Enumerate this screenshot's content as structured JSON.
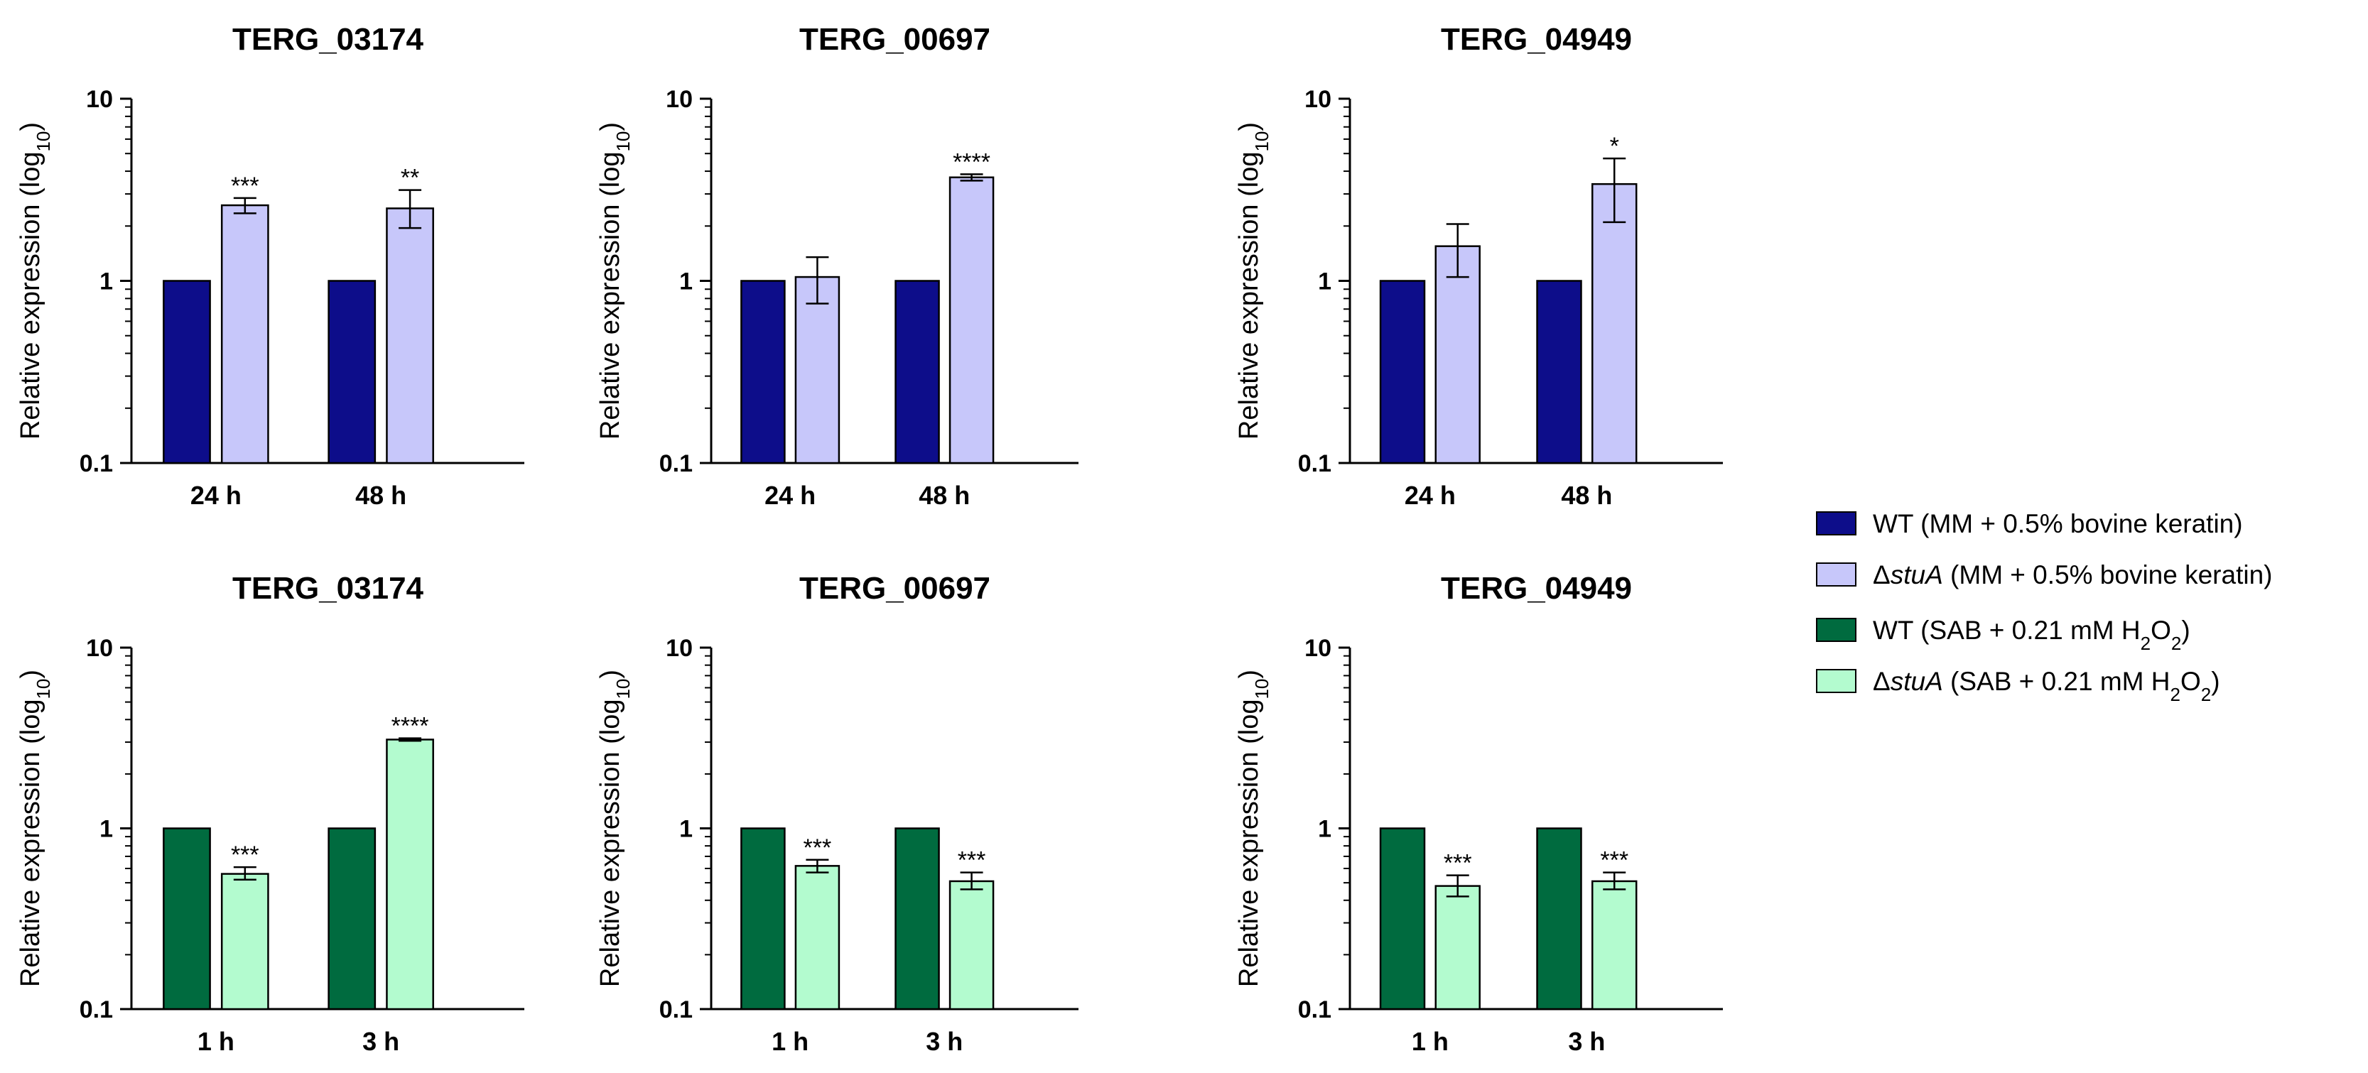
{
  "chart_data": [
    {
      "type": "bar",
      "title": "TERG_03174",
      "ylabel": "Relative expression (log",
      "ylabel_sub": "10",
      "ylabel_end": ")",
      "yscale": "log",
      "ylim": [
        0.1,
        10
      ],
      "yticks": [
        "10",
        "1",
        "0.1"
      ],
      "yticks_values": [
        10,
        1,
        0.1
      ],
      "categories": [
        "24 h",
        "48 h"
      ],
      "series": [
        {
          "name": "WT (MM + 0.5% bovine keratin)",
          "values": [
            1,
            1
          ],
          "color": "#0d0d8a"
        },
        {
          "name": "ΔstuA (MM + 0.5% bovine keratin)",
          "values": [
            2.6,
            2.5
          ],
          "err_low": [
            2.35,
            1.95
          ],
          "err_high": [
            2.85,
            3.15
          ],
          "sig": [
            "***",
            "**"
          ],
          "color": "#c7c7fa"
        }
      ]
    },
    {
      "type": "bar",
      "title": "TERG_00697",
      "ylabel": "Relative expression (log",
      "ylabel_sub": "10",
      "ylabel_end": ")",
      "yscale": "log",
      "ylim": [
        0.1,
        10
      ],
      "yticks": [
        "10",
        "1",
        "0.1"
      ],
      "yticks_values": [
        10,
        1,
        0.1
      ],
      "categories": [
        "24 h",
        "48 h"
      ],
      "series": [
        {
          "name": "WT (MM + 0.5% bovine keratin)",
          "values": [
            1,
            1
          ],
          "color": "#0d0d8a"
        },
        {
          "name": "ΔstuA (MM + 0.5% bovine keratin)",
          "values": [
            1.05,
            3.7
          ],
          "err_low": [
            0.75,
            3.55
          ],
          "err_high": [
            1.35,
            3.85
          ],
          "sig": [
            "",
            "****"
          ],
          "color": "#c7c7fa"
        }
      ]
    },
    {
      "type": "bar",
      "title": "TERG_04949",
      "ylabel": "Relative expression (log",
      "ylabel_sub": "10",
      "ylabel_end": ")",
      "yscale": "log",
      "ylim": [
        0.1,
        10
      ],
      "yticks": [
        "10",
        "1",
        "0.1"
      ],
      "yticks_values": [
        10,
        1,
        0.1
      ],
      "categories": [
        "24 h",
        "48 h"
      ],
      "series": [
        {
          "name": "WT (MM + 0.5% bovine keratin)",
          "values": [
            1,
            1
          ],
          "color": "#0d0d8a"
        },
        {
          "name": "ΔstuA (MM + 0.5% bovine keratin)",
          "values": [
            1.55,
            3.4
          ],
          "err_low": [
            1.05,
            2.1
          ],
          "err_high": [
            2.05,
            4.7
          ],
          "sig": [
            "",
            "*"
          ],
          "color": "#c7c7fa"
        }
      ]
    },
    {
      "type": "bar",
      "title": "TERG_03174",
      "ylabel": "Relative expression (log",
      "ylabel_sub": "10",
      "ylabel_end": ")",
      "yscale": "log",
      "ylim": [
        0.1,
        10
      ],
      "yticks": [
        "10",
        "1",
        "0.1"
      ],
      "yticks_values": [
        10,
        1,
        0.1
      ],
      "categories": [
        "1 h",
        "3 h"
      ],
      "series": [
        {
          "name": "WT (SAB + 0.21 mM H2O2)",
          "values": [
            1,
            1
          ],
          "color": "#006b3f"
        },
        {
          "name": "ΔstuA (SAB + 0.21 mM H2O2)",
          "values": [
            0.56,
            3.1
          ],
          "err_low": [
            0.52,
            3.05
          ],
          "err_high": [
            0.61,
            3.15
          ],
          "sig": [
            "***",
            "****"
          ],
          "color": "#b3fbcf"
        }
      ]
    },
    {
      "type": "bar",
      "title": "TERG_00697",
      "ylabel": "Relative expression (log",
      "ylabel_sub": "10",
      "ylabel_end": ")",
      "yscale": "log",
      "ylim": [
        0.1,
        10
      ],
      "yticks": [
        "10",
        "1",
        "0.1"
      ],
      "yticks_values": [
        10,
        1,
        0.1
      ],
      "categories": [
        "1 h",
        "3 h"
      ],
      "series": [
        {
          "name": "WT (SAB + 0.21 mM H2O2)",
          "values": [
            1,
            1
          ],
          "color": "#006b3f"
        },
        {
          "name": "ΔstuA (SAB + 0.21 mM H2O2)",
          "values": [
            0.62,
            0.51
          ],
          "err_low": [
            0.57,
            0.46
          ],
          "err_high": [
            0.67,
            0.57
          ],
          "sig": [
            "***",
            "***"
          ],
          "color": "#b3fbcf"
        }
      ]
    },
    {
      "type": "bar",
      "title": "TERG_04949",
      "ylabel": "Relative expression (log",
      "ylabel_sub": "10",
      "ylabel_end": ")",
      "yscale": "log",
      "ylim": [
        0.1,
        10
      ],
      "yticks": [
        "10",
        "1",
        "0.1"
      ],
      "yticks_values": [
        10,
        1,
        0.1
      ],
      "categories": [
        "1 h",
        "3 h"
      ],
      "series": [
        {
          "name": "WT (SAB + 0.21 mM H2O2)",
          "values": [
            1,
            1
          ],
          "color": "#006b3f"
        },
        {
          "name": "ΔstuA (SAB + 0.21 mM H2O2)",
          "values": [
            0.48,
            0.51
          ],
          "err_low": [
            0.42,
            0.46
          ],
          "err_high": [
            0.55,
            0.57
          ],
          "sig": [
            "***",
            "***"
          ],
          "color": "#b3fbcf"
        }
      ]
    }
  ],
  "legend": {
    "position": "right",
    "items": [
      {
        "color": "#0d0d8a",
        "delta": "",
        "name": "WT",
        "text": " (MM + 0.5% bovine keratin)"
      },
      {
        "color": "#c7c7fa",
        "delta": "Δ",
        "name": "stuA",
        "text": " (MM + 0.5% bovine keratin)"
      },
      {
        "color": "#006b3f",
        "delta": "",
        "name": "WT",
        "text": " (SAB + 0.21 mM H",
        "sub1": "2",
        "mid": "O",
        "sub2": "2",
        "end": ")"
      },
      {
        "color": "#b3fbcf",
        "delta": "Δ",
        "name": "stuA",
        "text": " (SAB + 0.21 mM H",
        "sub1": "2",
        "mid": "O",
        "sub2": "2",
        "end": ")"
      }
    ]
  }
}
